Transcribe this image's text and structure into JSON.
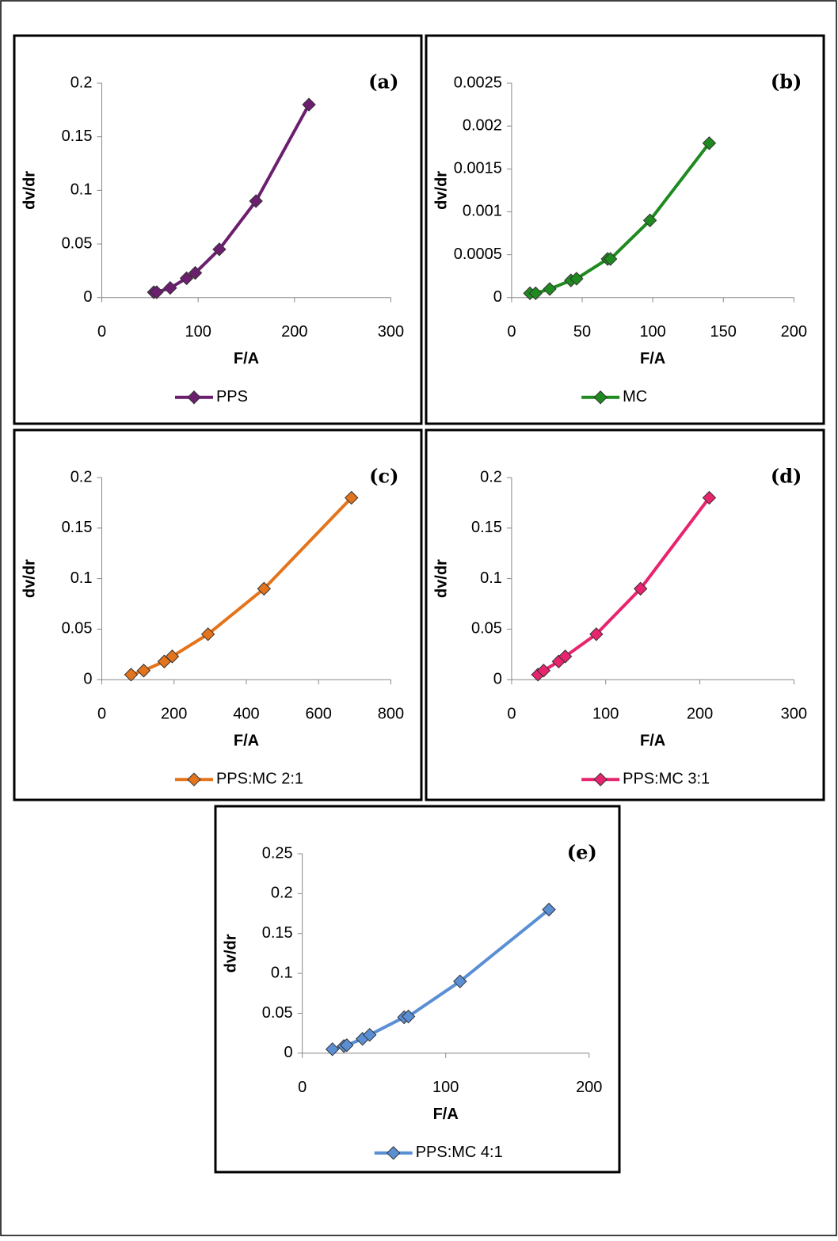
{
  "chart_data": [
    {
      "type": "line",
      "label": "(a)",
      "xlabel": "F/A",
      "ylabel": "dv/dr",
      "x": [
        54,
        57,
        71,
        88,
        97,
        122,
        160,
        215
      ],
      "series": [
        {
          "name": "PPS",
          "color": "#6b1f6e",
          "values": [
            0.005,
            0.005,
            0.009,
            0.018,
            0.023,
            0.045,
            0.09,
            0.18
          ]
        }
      ],
      "xlim": [
        0,
        300
      ],
      "xticks": [
        0,
        100,
        200,
        300
      ],
      "ylim": [
        0,
        0.2
      ],
      "yticks": [
        0,
        0.05,
        0.1,
        0.15,
        0.2
      ]
    },
    {
      "type": "line",
      "label": "(b)",
      "xlabel": "F/A",
      "ylabel": "dv/dr",
      "x": [
        13,
        17,
        27,
        42,
        46,
        68,
        70,
        98,
        140
      ],
      "series": [
        {
          "name": "MC",
          "color": "#1f8a1f",
          "values": [
            5e-05,
            5e-05,
            0.0001,
            0.0002,
            0.00022,
            0.00045,
            0.00045,
            0.0009,
            0.0018
          ]
        }
      ],
      "xlim": [
        0,
        200
      ],
      "xticks": [
        0,
        50,
        100,
        150,
        200
      ],
      "ylim": [
        0,
        0.0025
      ],
      "yticks": [
        0,
        0.0005,
        0.001,
        0.0015,
        0.002,
        0.0025
      ]
    },
    {
      "type": "line",
      "label": "(c)",
      "xlabel": "F/A",
      "ylabel": "dv/dr",
      "x": [
        81,
        116,
        173,
        195,
        294,
        449,
        691
      ],
      "series": [
        {
          "name": "PPS:MC 2:1",
          "color": "#e4741c",
          "values": [
            0.005,
            0.009,
            0.018,
            0.023,
            0.045,
            0.09,
            0.18
          ]
        }
      ],
      "xlim": [
        0,
        800
      ],
      "xticks": [
        0,
        200,
        400,
        600,
        800
      ],
      "ylim": [
        0,
        0.2
      ],
      "yticks": [
        0,
        0.05,
        0.1,
        0.15,
        0.2
      ]
    },
    {
      "type": "line",
      "label": "(d)",
      "xlabel": "F/A",
      "ylabel": "dv/dr",
      "x": [
        28,
        34,
        50,
        57,
        90,
        137,
        210
      ],
      "series": [
        {
          "name": "PPS:MC 3:1",
          "color": "#e8246f",
          "values": [
            0.005,
            0.009,
            0.018,
            0.023,
            0.045,
            0.09,
            0.18
          ]
        }
      ],
      "xlim": [
        0,
        300
      ],
      "xticks": [
        0,
        100,
        200,
        300
      ],
      "ylim": [
        0,
        0.2
      ],
      "yticks": [
        0,
        0.05,
        0.1,
        0.15,
        0.2
      ]
    },
    {
      "type": "line",
      "label": "(e)",
      "xlabel": "F/A",
      "ylabel": "dv/dr",
      "x": [
        21,
        29,
        31,
        42,
        47,
        71,
        74,
        110,
        172
      ],
      "series": [
        {
          "name": "PPS:MC 4:1",
          "color": "#5a8fd4",
          "values": [
            0.005,
            0.009,
            0.01,
            0.018,
            0.023,
            0.045,
            0.046,
            0.09,
            0.18
          ]
        }
      ],
      "xlim": [
        0,
        200
      ],
      "xticks": [
        0,
        100,
        200
      ],
      "ylim": [
        0,
        0.25
      ],
      "yticks": [
        0,
        0.05,
        0.1,
        0.15,
        0.2,
        0.25
      ]
    }
  ]
}
